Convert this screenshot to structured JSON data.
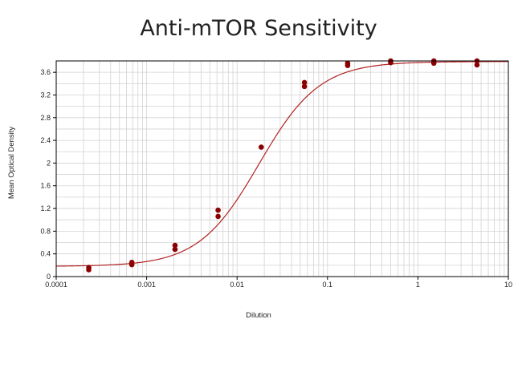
{
  "chart_data": {
    "type": "scatter",
    "title": "Anti-mTOR Sensitivity",
    "xlabel": "Dilution",
    "ylabel": "Mean Optical Density",
    "xscale": "log",
    "xlim": [
      0.0001,
      10
    ],
    "ylim": [
      0,
      3.8
    ],
    "grid": true,
    "legend": "none",
    "x_ticks": [
      "0.0001",
      "0.001",
      "0.01",
      "0.1",
      "1",
      "10"
    ],
    "y_ticks": [
      "0",
      "0.4",
      "0.8",
      "1.2",
      "1.6",
      "2",
      "2.4",
      "2.8",
      "3.2",
      "3.6"
    ],
    "colors": {
      "points": "#8b0000",
      "fit_line": "#b22222",
      "grid": "#d3d3d3",
      "frame": "#000000"
    },
    "points": [
      {
        "x": 0.000229,
        "y": 0.16
      },
      {
        "x": 0.000229,
        "y": 0.12
      },
      {
        "x": 0.000686,
        "y": 0.25
      },
      {
        "x": 0.000686,
        "y": 0.21
      },
      {
        "x": 0.00206,
        "y": 0.55
      },
      {
        "x": 0.00206,
        "y": 0.48
      },
      {
        "x": 0.00617,
        "y": 1.17
      },
      {
        "x": 0.00617,
        "y": 1.06
      },
      {
        "x": 0.0185,
        "y": 2.28
      },
      {
        "x": 0.0556,
        "y": 3.42
      },
      {
        "x": 0.0556,
        "y": 3.35
      },
      {
        "x": 0.167,
        "y": 3.76
      },
      {
        "x": 0.167,
        "y": 3.72
      },
      {
        "x": 0.5,
        "y": 3.8
      },
      {
        "x": 0.5,
        "y": 3.77
      },
      {
        "x": 1.5,
        "y": 3.8
      },
      {
        "x": 1.5,
        "y": 3.76
      },
      {
        "x": 4.5,
        "y": 3.8
      },
      {
        "x": 4.5,
        "y": 3.73
      }
    ],
    "fit": {
      "model": "4PL",
      "bottom": 0.18,
      "top": 3.79,
      "ec50": 0.0175,
      "hill": 1.3
    }
  }
}
